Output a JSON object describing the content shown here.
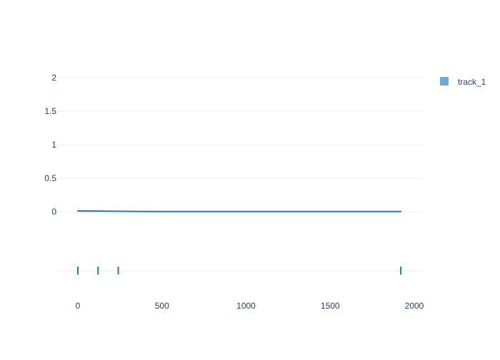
{
  "chart_data": {
    "type": "line",
    "title": "",
    "xlabel": "",
    "ylabel": "",
    "xlim": [
      -115,
      2045
    ],
    "ylim": [
      -0.1,
      2.1
    ],
    "x_ticks": [
      "0",
      "500",
      "1000",
      "1500",
      "2000"
    ],
    "x_tick_values": [
      0,
      500,
      1000,
      1500,
      2000
    ],
    "y_ticks": [
      "0",
      "0.5",
      "1",
      "1.5",
      "2"
    ],
    "y_tick_values": [
      0,
      0.5,
      1,
      1.5,
      2
    ],
    "grid": true,
    "legend_position": "top-right",
    "series": [
      {
        "name": "track_1",
        "color": "#1f77b4",
        "legend_color": "#6fa8d6",
        "x": [
          0,
          120,
          240,
          360,
          480,
          720,
          960,
          1200,
          1440,
          1680,
          1920
        ],
        "y": [
          0.012,
          0.009,
          0.006,
          0.004,
          0.003,
          0.003,
          0.003,
          0.003,
          0.003,
          0.003,
          0.003
        ]
      }
    ],
    "rug": {
      "series": "track_1",
      "x": [
        0,
        120,
        240,
        1920
      ]
    }
  }
}
